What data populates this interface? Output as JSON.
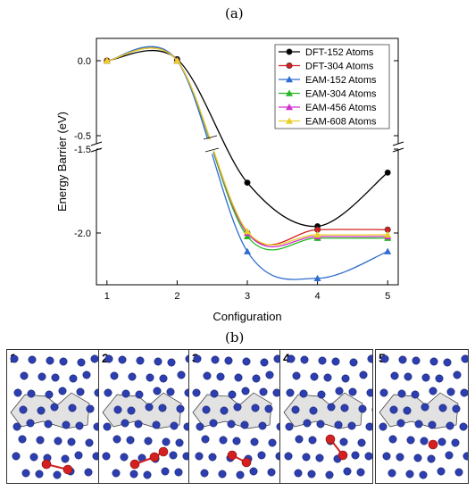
{
  "panels": {
    "a": "(a)",
    "b": "(b)"
  },
  "chart_data": {
    "type": "line",
    "xlabel": "Configuration",
    "ylabel": "Energy Barrier (eV)",
    "x_ticks": [
      1,
      2,
      3,
      4,
      5
    ],
    "y_ticks_upper": [
      "0.0",
      "-0.5"
    ],
    "y_ticks_lower": [
      "-1.5",
      "-2.0"
    ],
    "y_axis_break": [
      -0.6,
      -1.4
    ],
    "ylim": [
      -2.3,
      0.1
    ],
    "grid": false,
    "legend_position": "top-right",
    "series": [
      {
        "name": "DFT-152 Atoms",
        "color": "#000000",
        "marker": "circle",
        "values": [
          0.0,
          0.01,
          -1.7,
          -1.96,
          -1.64
        ]
      },
      {
        "name": "DFT-304 Atoms",
        "color": "#d62020",
        "marker": "circle",
        "values": [
          0.0,
          0.0,
          -2.0,
          -1.98,
          -1.98
        ]
      },
      {
        "name": "EAM-152 Atoms",
        "color": "#2f6ccf",
        "marker": "triangle",
        "values": [
          0.0,
          0.0,
          -2.11,
          -2.27,
          -2.11
        ]
      },
      {
        "name": "EAM-304 Atoms",
        "color": "#25b825",
        "marker": "triangle",
        "values": [
          0.0,
          0.0,
          -2.02,
          -2.03,
          -2.03
        ]
      },
      {
        "name": "EAM-456 Atoms",
        "color": "#d030d0",
        "marker": "triangle",
        "values": [
          0.0,
          0.0,
          -2.0,
          -2.02,
          -2.02
        ]
      },
      {
        "name": "EAM-608 Atoms",
        "color": "#e8d028",
        "marker": "triangle",
        "values": [
          0.0,
          0.0,
          -1.99,
          -2.01,
          -2.01
        ]
      }
    ]
  },
  "snapshots": [
    {
      "label": "1"
    },
    {
      "label": "2"
    },
    {
      "label": "3"
    },
    {
      "label": "4"
    },
    {
      "label": "5"
    }
  ],
  "colors": {
    "atom_blue": "#2d3fb0",
    "atom_red": "#d42020",
    "shaded_region": "#e2e2e2"
  }
}
